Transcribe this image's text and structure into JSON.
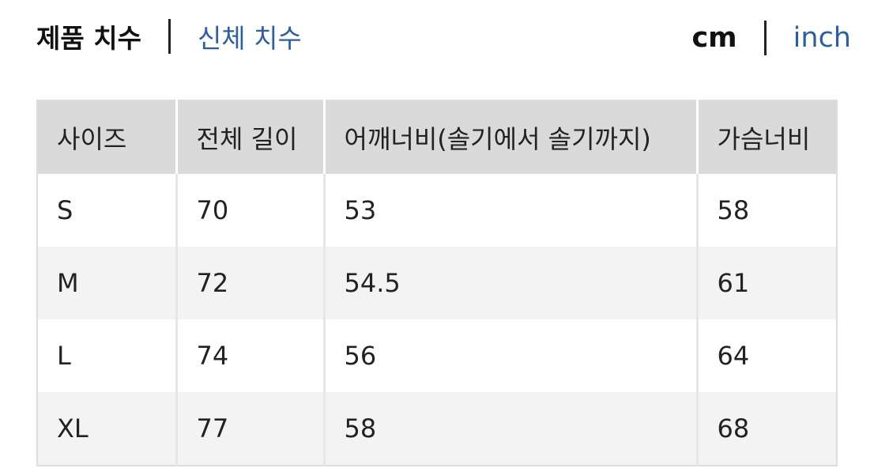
{
  "tabs": [
    {
      "label": "제품 치수",
      "active": true
    },
    {
      "label": "신체 치수",
      "active": false
    }
  ],
  "units": [
    {
      "label": "cm",
      "active": true
    },
    {
      "label": "inch",
      "active": false
    }
  ],
  "colors": {
    "link": "#2f5f9a",
    "header_bg": "#dadada",
    "alt_row_bg": "#f3f3f3"
  },
  "table": {
    "headers": [
      "사이즈",
      "전체 길이",
      "어깨너비(솔기에서 솔기까지)",
      "가슴너비"
    ],
    "rows": [
      [
        "S",
        "70",
        "53",
        "58"
      ],
      [
        "M",
        "72",
        "54.5",
        "61"
      ],
      [
        "L",
        "74",
        "56",
        "64"
      ],
      [
        "XL",
        "77",
        "58",
        "68"
      ]
    ]
  }
}
